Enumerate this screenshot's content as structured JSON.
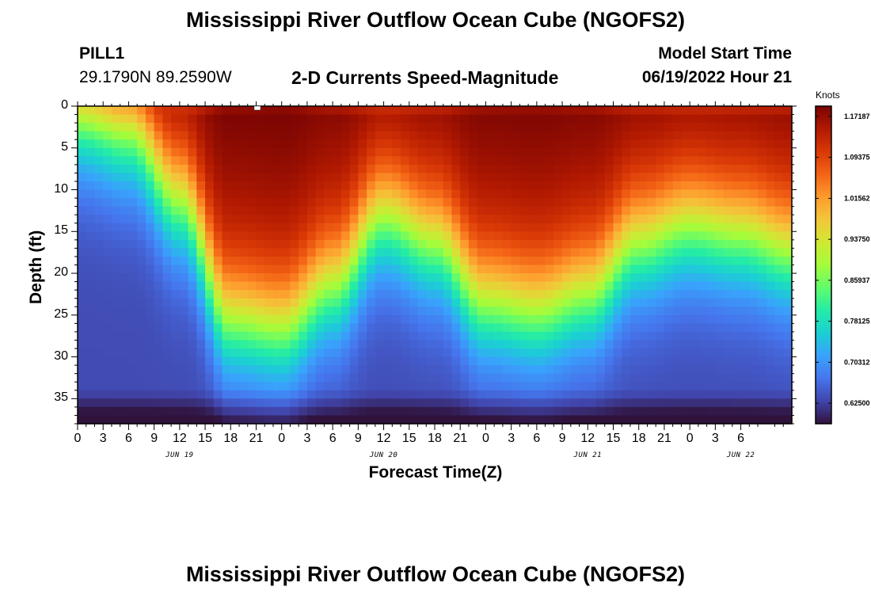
{
  "header": {
    "title": "Mississippi River Outflow Ocean Cube (NGOFS2)",
    "station": "PILL1",
    "coords": "29.1790N  89.2590W",
    "subtitle": "2-D Currents Speed-Magnitude",
    "model_start_label": "Model Start Time",
    "model_start_value": "06/19/2022 Hour 21"
  },
  "footer": {
    "title": "Mississippi River Outflow Ocean Cube (NGOFS2)"
  },
  "chart_data": {
    "type": "heatmap",
    "title": "2-D Currents Speed-Magnitude",
    "xlabel": "Forecast Time(Z)",
    "ylabel": "Depth (ft)",
    "x_hours_from_jun19_00": [
      0,
      84
    ],
    "x_tick_labels": [
      "0",
      "3",
      "6",
      "9",
      "12",
      "15",
      "18",
      "21",
      "0",
      "3",
      "6",
      "9",
      "12",
      "15",
      "18",
      "21",
      "0",
      "3",
      "6",
      "9",
      "12",
      "15",
      "18",
      "21",
      "0",
      "3",
      "6"
    ],
    "date_labels": [
      "JUN 19",
      "JUN 20",
      "JUN 21",
      "JUN 22"
    ],
    "ylim": [
      0,
      38
    ],
    "y_inverted": true,
    "y_ticks": [
      0,
      5,
      10,
      15,
      20,
      25,
      30,
      35
    ],
    "colorbar": {
      "unit": "Knots",
      "range": [
        0.5859,
        1.1914
      ],
      "ticks": [
        "1.17187",
        "1.09375",
        "1.01562",
        "0.93750",
        "0.85937",
        "0.78125",
        "0.70312",
        "0.62500"
      ],
      "colors": [
        "#30123b",
        "#4145ab",
        "#4675ed",
        "#39a2fc",
        "#1bcfd4",
        "#24eca6",
        "#61fc6c",
        "#a4fc3b",
        "#d1e834",
        "#f3c63a",
        "#fe9b2d",
        "#f36315",
        "#d93806",
        "#b11901",
        "#7a0403"
      ]
    },
    "surface_peak_depth_ft": [
      {
        "hour": 0,
        "interface_depth_ft": 2
      },
      {
        "hour": 6,
        "interface_depth_ft": 4
      },
      {
        "hour": 12,
        "interface_depth_ft": 12
      },
      {
        "hour": 18,
        "interface_depth_ft": 26
      },
      {
        "hour": 24,
        "interface_depth_ft": 27
      },
      {
        "hour": 30,
        "interface_depth_ft": 22
      },
      {
        "hour": 36,
        "interface_depth_ft": 14
      },
      {
        "hour": 42,
        "interface_depth_ft": 17
      },
      {
        "hour": 48,
        "interface_depth_ft": 24
      },
      {
        "hour": 54,
        "interface_depth_ft": 25
      },
      {
        "hour": 60,
        "interface_depth_ft": 23
      },
      {
        "hour": 66,
        "interface_depth_ft": 17
      },
      {
        "hour": 72,
        "interface_depth_ft": 15
      },
      {
        "hour": 78,
        "interface_depth_ft": 16
      },
      {
        "hour": 84,
        "interface_depth_ft": 18
      }
    ]
  }
}
